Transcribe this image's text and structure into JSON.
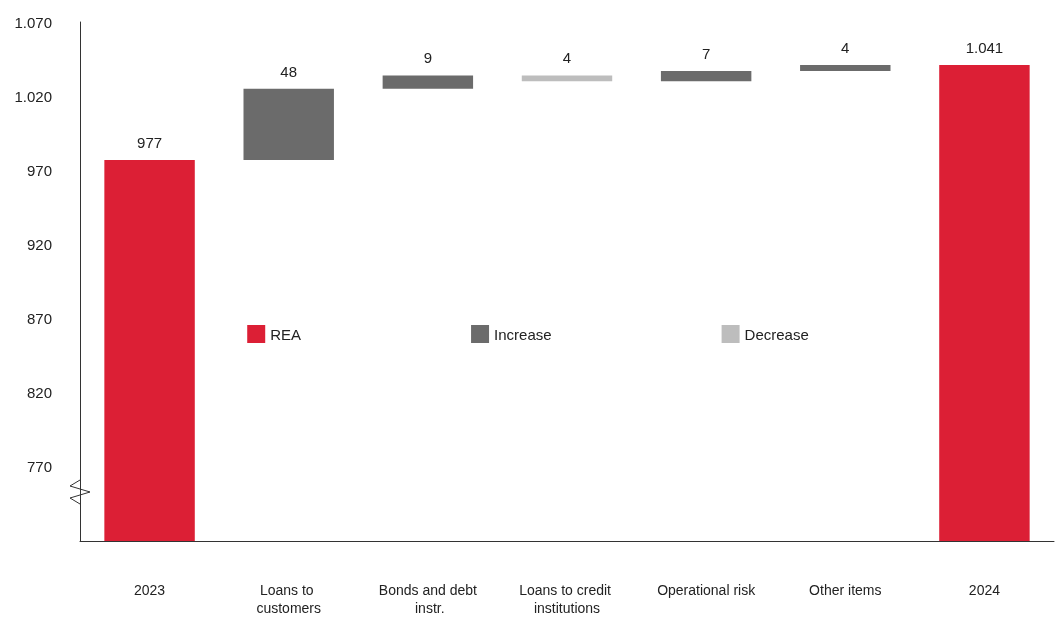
{
  "chart_data": {
    "type": "bar",
    "categories": [
      "2023",
      "Loans to customers",
      "Bonds and debt instr.",
      "Loans to credit institutions",
      "Operational risk",
      "Other items",
      "2024"
    ],
    "series": [
      {
        "name": "REA",
        "color": "#dc1f35",
        "values": [
          977,
          null,
          null,
          null,
          null,
          null,
          1041
        ],
        "base": [
          null,
          null,
          null,
          null,
          null,
          null,
          null
        ],
        "value_labels": [
          "977",
          null,
          null,
          null,
          null,
          null,
          "1.041"
        ]
      },
      {
        "name": "Increase",
        "color": "#6b6b6b",
        "values": [
          null,
          48,
          9,
          null,
          7,
          4,
          null
        ],
        "base": [
          null,
          977,
          1025,
          null,
          1030,
          1037,
          null
        ],
        "value_labels": [
          null,
          "48",
          "9",
          null,
          "7",
          "4",
          null
        ]
      },
      {
        "name": "Decrease",
        "color": "#bdbdbd",
        "values": [
          null,
          null,
          null,
          -4,
          null,
          null,
          null
        ],
        "base": [
          null,
          null,
          null,
          1034,
          null,
          null,
          null
        ],
        "value_labels": [
          null,
          null,
          null,
          "4",
          null,
          null,
          null
        ]
      }
    ],
    "ylim": [
      720,
      1070
    ],
    "yticks": [
      770,
      820,
      870,
      920,
      970,
      {
        "value": 1020,
        "label": "1.020"
      },
      {
        "value": 1070,
        "label": "1.070"
      }
    ],
    "grid": false,
    "legend": "center"
  }
}
